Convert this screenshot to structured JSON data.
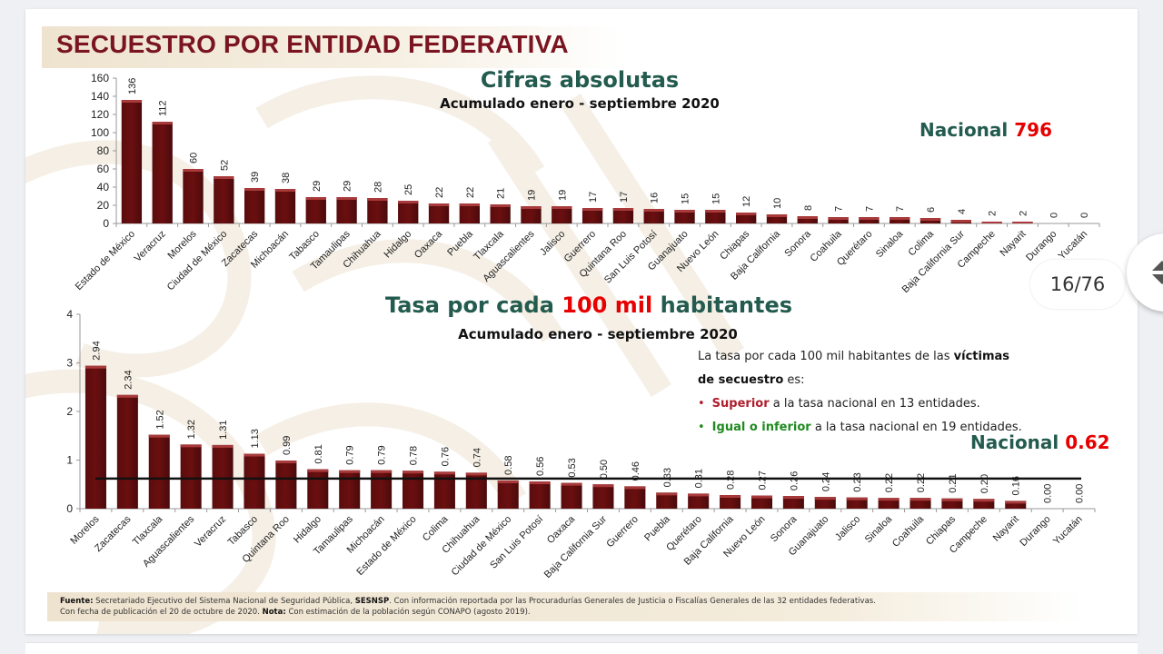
{
  "slide": {
    "title": "SECUESTRO POR ENTIDAD FEDERATIVA",
    "page_counter": "16/76",
    "accent_color": "#7a1420",
    "bar_color": "#6b0f10",
    "green_color": "#235b4e",
    "red_color": "#e60000"
  },
  "top": {
    "title": "Cifras absolutas",
    "subtitle": "Acumulado enero - septiembre 2020",
    "nacional_label": "Nacional",
    "nacional_value": "796"
  },
  "bottom": {
    "title_a": "Tasa por cada",
    "title_b": "100 mil",
    "title_c": "habitantes",
    "subtitle": "Acumulado enero - septiembre 2020",
    "nacional_label": "Nacional",
    "nacional_value": "0.62"
  },
  "note": {
    "line1_plain": "La tasa por cada 100 mil habitantes de las ",
    "line1_bold": "víctimas",
    "line2_bold": "de secuestro",
    "line2_plain": " es:",
    "bullet1_bold": "Superior",
    "bullet1_plain": " a la tasa nacional en 13 entidades.",
    "bullet2_bold": "Igual o inferior",
    "bullet2_plain": " a la tasa nacional en 19 entidades."
  },
  "footer": {
    "fuente_label": "Fuente:",
    "fuente_text": " Secretariado Ejecutivo del Sistema Nacional de Seguridad Pública, ",
    "sesnsp": "SESNSP",
    "fuente_text2": ". Con información reportada por las Procuradurías Generales de Justicia o Fiscalías Generales de las 32 entidades federativas.",
    "line2_text": "Con fecha de publicación el 20 de octubre de 2020. ",
    "nota_label": "Nota:",
    "nota_text": " Con estimación de la población según CONAPO (agosto 2019)."
  },
  "chart_data": [
    {
      "type": "bar",
      "title": "Cifras absolutas",
      "subtitle": "Acumulado enero - septiembre 2020",
      "xlabel": "",
      "ylabel": "",
      "ylim": [
        0,
        160
      ],
      "yticks": [
        0,
        20,
        40,
        60,
        80,
        100,
        120,
        140,
        160
      ],
      "grid": false,
      "categories": [
        "Estado de México",
        "Veracruz",
        "Morelos",
        "Ciudad de México",
        "Zacatecas",
        "Michoacán",
        "Tabasco",
        "Tamaulipas",
        "Chihuahua",
        "Hidalgo",
        "Oaxaca",
        "Puebla",
        "Tlaxcala",
        "Aguascalientes",
        "Jalisco",
        "Guerrero",
        "Quintana Roo",
        "San Luis Potosí",
        "Guanajuato",
        "Nuevo León",
        "Chiapas",
        "Baja California",
        "Sonora",
        "Coahuila",
        "Querétaro",
        "Sinaloa",
        "Colima",
        "Baja California Sur",
        "Campeche",
        "Nayarit",
        "Durango",
        "Yucatán"
      ],
      "values": [
        136,
        112,
        60,
        52,
        39,
        38,
        29,
        29,
        28,
        25,
        22,
        22,
        21,
        19,
        19,
        17,
        17,
        16,
        15,
        15,
        12,
        10,
        8,
        7,
        7,
        7,
        6,
        4,
        2,
        2,
        0,
        0
      ],
      "value_labels": [
        "136",
        "112",
        "60",
        "52",
        "39",
        "38",
        "29",
        "29",
        "28",
        "25",
        "22",
        "22",
        "21",
        "19",
        "19",
        "17",
        "17",
        "16",
        "15",
        "15",
        "12",
        "10",
        "8",
        "7",
        "7",
        "7",
        "6",
        "4",
        "2",
        "2",
        "0",
        "0"
      ],
      "annotation": "Nacional 796"
    },
    {
      "type": "bar",
      "title": "Tasa por cada 100 mil habitantes",
      "subtitle": "Acumulado enero - septiembre 2020",
      "xlabel": "",
      "ylabel": "",
      "ylim": [
        0,
        4
      ],
      "yticks": [
        0,
        1,
        2,
        3,
        4
      ],
      "grid": false,
      "categories": [
        "Morelos",
        "Zacatecas",
        "Tlaxcala",
        "Aguascalientes",
        "Veracruz",
        "Tabasco",
        "Quintana Roo",
        "Hidalgo",
        "Tamaulipas",
        "Michoacán",
        "Estado de México",
        "Colima",
        "Chihuahua",
        "Ciudad de México",
        "San Luis Potosí",
        "Oaxaca",
        "Baja California Sur",
        "Guerrero",
        "Puebla",
        "Querétaro",
        "Baja California",
        "Nuevo León",
        "Sonora",
        "Guanajuato",
        "Jalisco",
        "Sinaloa",
        "Coahuila",
        "Chiapas",
        "Campeche",
        "Nayarit",
        "Durango",
        "Yucatán"
      ],
      "values": [
        2.94,
        2.34,
        1.52,
        1.32,
        1.31,
        1.13,
        0.99,
        0.81,
        0.79,
        0.79,
        0.78,
        0.76,
        0.74,
        0.58,
        0.56,
        0.53,
        0.5,
        0.46,
        0.33,
        0.31,
        0.28,
        0.27,
        0.26,
        0.24,
        0.23,
        0.22,
        0.22,
        0.21,
        0.2,
        0.16,
        0.0,
        0.0
      ],
      "value_labels": [
        "2.94",
        "2.34",
        "1.52",
        "1.32",
        "1.31",
        "1.13",
        "0.99",
        "0.81",
        "0.79",
        "0.79",
        "0.78",
        "0.76",
        "0.74",
        "0.58",
        "0.56",
        "0.53",
        "0.50",
        "0.46",
        "0.33",
        "0.31",
        "0.28",
        "0.27",
        "0.26",
        "0.24",
        "0.23",
        "0.22",
        "0.22",
        "0.21",
        "0.20",
        "0.16",
        "0.00",
        "0.00"
      ],
      "reference_line": {
        "label": "Nacional",
        "value": 0.62
      },
      "annotation": "Nacional 0.62"
    }
  ]
}
